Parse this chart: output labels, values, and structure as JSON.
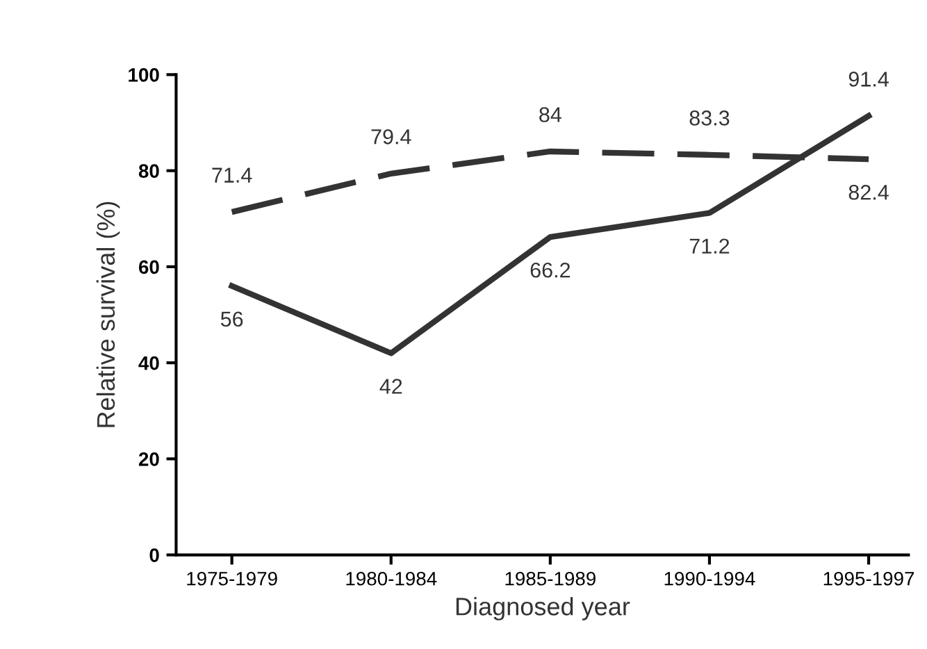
{
  "chart_data": {
    "type": "line",
    "xlabel": "Diagnosed year",
    "ylabel": "Relative survival (%)",
    "categories": [
      "1975-1979",
      "1980-1984",
      "1985-1989",
      "1990-1994",
      "1995-1997"
    ],
    "series": [
      {
        "color": "#333333",
        "values": [
          71.4,
          79.4,
          84,
          83.3,
          82.4
        ],
        "line_style": "dashed"
      },
      {
        "color": "#333333",
        "values": [
          56,
          42,
          66.2,
          71.2,
          91.4
        ],
        "line_style": "solid"
      }
    ],
    "ylim": [
      0,
      100
    ],
    "yticks": [
      0,
      20,
      40,
      60,
      80,
      100
    ],
    "grid": false,
    "marker": "none",
    "data_labels": true
  }
}
